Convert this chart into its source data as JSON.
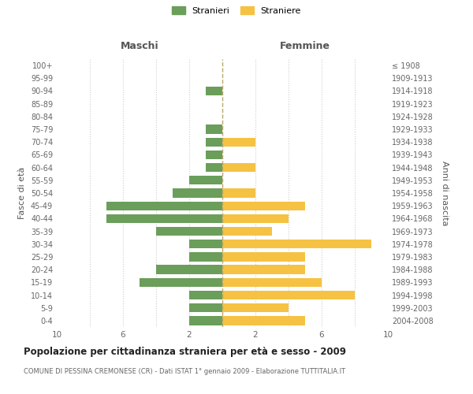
{
  "age_groups": [
    "0-4",
    "5-9",
    "10-14",
    "15-19",
    "20-24",
    "25-29",
    "30-34",
    "35-39",
    "40-44",
    "45-49",
    "50-54",
    "55-59",
    "60-64",
    "65-69",
    "70-74",
    "75-79",
    "80-84",
    "85-89",
    "90-94",
    "95-99",
    "100+"
  ],
  "birth_years": [
    "2004-2008",
    "1999-2003",
    "1994-1998",
    "1989-1993",
    "1984-1988",
    "1979-1983",
    "1974-1978",
    "1969-1973",
    "1964-1968",
    "1959-1963",
    "1954-1958",
    "1949-1953",
    "1944-1948",
    "1939-1943",
    "1934-1938",
    "1929-1933",
    "1924-1928",
    "1919-1923",
    "1914-1918",
    "1909-1913",
    "≤ 1908"
  ],
  "maschi": [
    2,
    2,
    2,
    5,
    4,
    2,
    2,
    4,
    7,
    7,
    3,
    2,
    1,
    1,
    1,
    1,
    0,
    0,
    1,
    0,
    0
  ],
  "femmine": [
    5,
    4,
    8,
    6,
    5,
    5,
    9,
    3,
    4,
    5,
    2,
    0,
    2,
    0,
    2,
    0,
    0,
    0,
    0,
    0,
    0
  ],
  "color_maschi": "#6a9e5a",
  "color_femmine": "#f5c243",
  "background_color": "#ffffff",
  "grid_color": "#cccccc",
  "title": "Popolazione per cittadinanza straniera per età e sesso - 2009",
  "subtitle": "COMUNE DI PESSINA CREMONESE (CR) - Dati ISTAT 1° gennaio 2009 - Elaborazione TUTTITALIA.IT",
  "ylabel_left": "Fasce di età",
  "ylabel_right": "Anni di nascita",
  "label_maschi": "Maschi",
  "label_femmine": "Femmine",
  "legend_stranieri": "Stranieri",
  "legend_straniere": "Straniere",
  "xlim": 10,
  "dashed_line_color": "#b8a86e"
}
